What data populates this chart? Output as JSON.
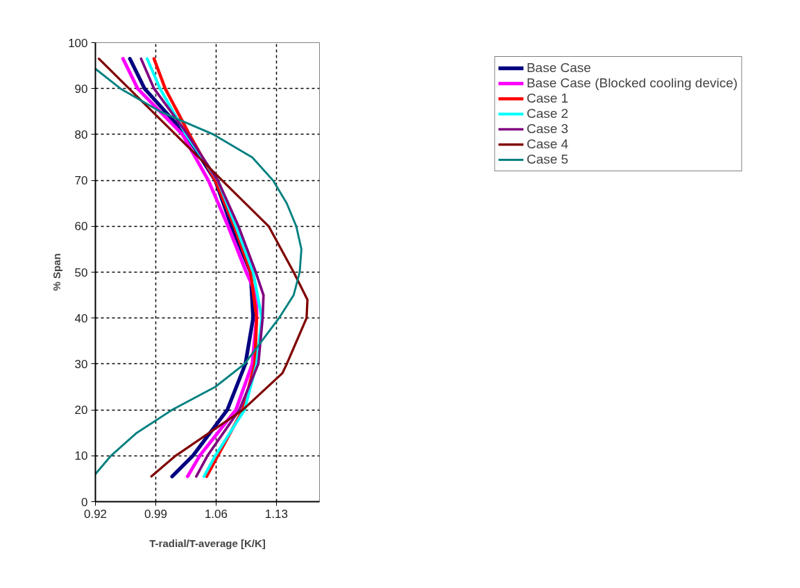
{
  "chart_data": {
    "type": "line",
    "xlabel": "T-radial/T-average [K/K]",
    "ylabel": "% Span",
    "xlim": [
      0.92,
      1.18
    ],
    "xticks": [
      0.92,
      0.99,
      1.06,
      1.13
    ],
    "ylim": [
      0,
      100
    ],
    "yticks": [
      0,
      10,
      20,
      30,
      40,
      50,
      60,
      70,
      80,
      90,
      100
    ],
    "grid": true,
    "legend": "top right",
    "marker": "none",
    "line_style": "solid",
    "series": [
      {
        "name": "Base Case",
        "color": "#000080",
        "x": [
          1.009,
          1.033,
          1.073,
          1.094,
          1.103,
          1.1,
          1.078,
          1.059,
          1.025,
          0.977,
          0.96
        ],
        "values": [
          5.5,
          10,
          20,
          30,
          40,
          50,
          60,
          70,
          80,
          90,
          96.5
        ]
      },
      {
        "name": "Base Case (Blocked cooling device)",
        "color": "#ff00ff",
        "x": [
          1.027,
          1.041,
          1.083,
          1.102,
          1.107,
          1.107,
          1.095,
          1.074,
          1.051,
          1.021,
          0.969,
          0.952
        ],
        "values": [
          5.5,
          10,
          20,
          30,
          40,
          45,
          50,
          60,
          70,
          80,
          90,
          96.5
        ]
      },
      {
        "name": "Case 1",
        "color": "#ff0000",
        "x": [
          1.049,
          1.062,
          1.091,
          1.105,
          1.107,
          1.1,
          1.081,
          1.059,
          1.029,
          1.001,
          0.988
        ],
        "values": [
          5.5,
          10,
          20,
          30,
          40,
          50,
          60,
          70,
          80,
          90,
          96.5
        ]
      },
      {
        "name": "Case 2",
        "color": "#00ffff",
        "x": [
          1.046,
          1.059,
          1.093,
          1.107,
          1.113,
          1.103,
          1.083,
          1.062,
          1.025,
          0.995,
          0.98
        ],
        "values": [
          5.5,
          10,
          20,
          30,
          40,
          50,
          60,
          70,
          80,
          90,
          96.5
        ]
      },
      {
        "name": "Case 3",
        "color": "#800080",
        "x": [
          1.037,
          1.05,
          1.087,
          1.109,
          1.114,
          1.115,
          1.106,
          1.086,
          1.062,
          1.027,
          0.988,
          0.973
        ],
        "values": [
          5.5,
          10,
          20,
          30,
          40,
          45,
          50,
          60,
          70,
          80,
          90,
          96.5
        ]
      },
      {
        "name": "Case 4",
        "color": "#800000",
        "x": [
          0.985,
          1.013,
          1.091,
          1.137,
          1.142,
          1.165,
          1.166,
          1.15,
          1.121,
          1.067,
          1.013,
          0.959,
          0.924
        ],
        "values": [
          5.5,
          10,
          20,
          28,
          30,
          40,
          44,
          50,
          60,
          70,
          80,
          90,
          96.5
        ]
      },
      {
        "name": "Case 5",
        "color": "#008080",
        "x": [
          0.92,
          0.938,
          0.968,
          1.009,
          1.059,
          1.093,
          1.113,
          1.133,
          1.15,
          1.157,
          1.159,
          1.153,
          1.142,
          1.126,
          1.102,
          1.057,
          0.995,
          0.949,
          0.92
        ],
        "values": [
          6,
          10,
          15,
          20,
          25,
          30,
          35,
          40,
          45,
          50,
          55,
          60,
          65,
          70,
          75,
          80,
          85,
          90,
          94.3
        ]
      }
    ]
  }
}
